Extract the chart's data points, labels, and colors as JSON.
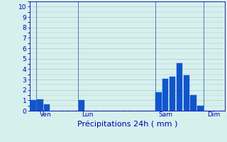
{
  "bar_values": [
    1.0,
    1.1,
    0.6,
    0.0,
    0.0,
    0.0,
    0.0,
    1.0,
    0.0,
    0.0,
    0.0,
    0.0,
    0.0,
    0.0,
    0.0,
    0.0,
    0.0,
    0.0,
    1.8,
    3.1,
    3.3,
    4.6,
    3.4,
    1.5,
    0.5,
    0.0,
    0.0,
    0.0
  ],
  "bar_color": "#1155cc",
  "background_color": "#d6f0ee",
  "grid_color": "#aacccc",
  "axis_color": "#0000aa",
  "tick_color": "#0000aa",
  "vline_color": "#5577aa",
  "xlabel": "Précipitations 24h ( mm )",
  "xlabel_color": "#0000aa",
  "xlabel_fontsize": 8,
  "yticks": [
    0,
    1,
    2,
    3,
    4,
    5,
    6,
    7,
    8,
    9,
    10
  ],
  "ylim": [
    0,
    10.5
  ],
  "xtick_labels": [
    "Ven",
    "Lun",
    "Sam",
    "Dim"
  ],
  "xtick_positions": [
    1,
    7,
    18,
    25
  ],
  "vline_positions": [
    0.5,
    6.5,
    17.5,
    24.5
  ],
  "tick_fontsize": 6.5,
  "num_bars": 28
}
